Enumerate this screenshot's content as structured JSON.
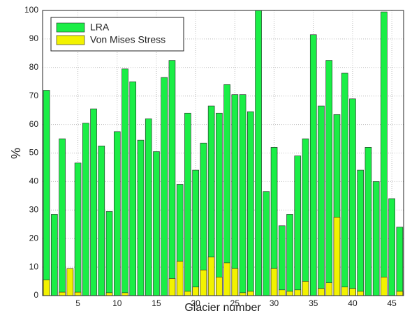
{
  "chart_data": {
    "type": "bar",
    "x": [
      1,
      2,
      3,
      4,
      5,
      6,
      7,
      8,
      9,
      10,
      11,
      12,
      13,
      14,
      15,
      16,
      17,
      18,
      19,
      20,
      21,
      22,
      23,
      24,
      25,
      26,
      27,
      28,
      29,
      30,
      31,
      32,
      33,
      34,
      35,
      36,
      37,
      38,
      39,
      40,
      41,
      42,
      43,
      44,
      45,
      46
    ],
    "series": [
      {
        "name": "LRA",
        "color": "#1aee46",
        "values": [
          72,
          28.5,
          55,
          9,
          46.5,
          60.5,
          65.5,
          52.5,
          29.5,
          57.5,
          79.5,
          75,
          54.5,
          62,
          50.5,
          76.5,
          82.5,
          39,
          64,
          44,
          53.5,
          66.5,
          64,
          74,
          70.5,
          70.5,
          64.5,
          100,
          36.5,
          52,
          24.5,
          28.5,
          49,
          55,
          91.5,
          66.5,
          82.5,
          63.5,
          78,
          69,
          44,
          52,
          40,
          99.5,
          34,
          24
        ]
      },
      {
        "name": "Von Mises Stress",
        "color": "#f2f200",
        "values": [
          5.5,
          0,
          1.2,
          9.5,
          1.2,
          0,
          0,
          0,
          1,
          0,
          1,
          0,
          0,
          0,
          0,
          0,
          6,
          12,
          1.5,
          3,
          9,
          13.5,
          6.5,
          11.5,
          9.5,
          1,
          1.5,
          0,
          0,
          9.5,
          2,
          1.5,
          2,
          5,
          0,
          2.5,
          4.5,
          27.5,
          3,
          2.5,
          1.5,
          0,
          0,
          6.5,
          0,
          1.5
        ]
      }
    ],
    "xlabel": "Glacier number",
    "ylabel": "%",
    "xlim": [
      0.5,
      46.5
    ],
    "xticks": [
      5,
      10,
      15,
      20,
      25,
      30,
      35,
      40,
      45
    ],
    "ylim": [
      0,
      100
    ],
    "yticks": [
      0,
      10,
      20,
      30,
      40,
      50,
      60,
      70,
      80,
      90,
      100
    ],
    "grid": true,
    "legend": "upper-left"
  }
}
